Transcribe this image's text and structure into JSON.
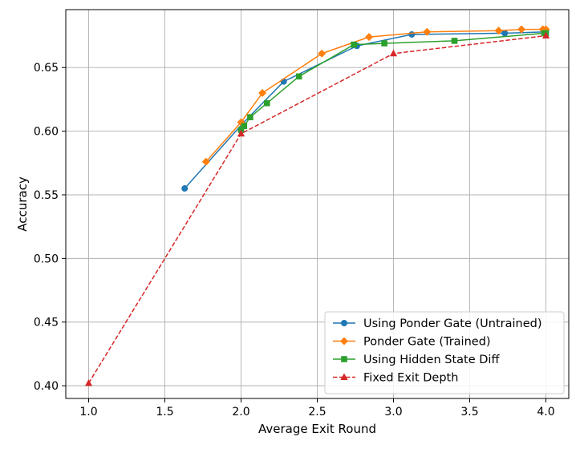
{
  "chart_data": {
    "type": "line",
    "title": "",
    "xlabel": "Average Exit Round",
    "ylabel": "Accuracy",
    "xlim": [
      0.85,
      4.15
    ],
    "ylim": [
      0.39,
      0.6955
    ],
    "xticks": [
      1.0,
      1.5,
      2.0,
      2.5,
      3.0,
      3.5,
      4.0
    ],
    "xtick_labels": [
      "1.0",
      "1.5",
      "2.0",
      "2.5",
      "3.0",
      "3.5",
      "4.0"
    ],
    "yticks": [
      0.4,
      0.45,
      0.5,
      0.55,
      0.6,
      0.65
    ],
    "ytick_labels": [
      "0.40",
      "0.45",
      "0.50",
      "0.55",
      "0.60",
      "0.65"
    ],
    "grid": true,
    "legend_position": "lower-right",
    "series": [
      {
        "name": "Using Ponder Gate (Untrained)",
        "color": "#1f77b4",
        "marker": "circle",
        "linestyle": "solid",
        "x": [
          1.63,
          2.01,
          2.28,
          2.76,
          3.12,
          3.73,
          4.0
        ],
        "y": [
          0.555,
          0.606,
          0.639,
          0.667,
          0.676,
          0.677,
          0.678
        ]
      },
      {
        "name": "Ponder Gate (Trained)",
        "color": "#ff7f0e",
        "marker": "diamond",
        "linestyle": "solid",
        "x": [
          1.77,
          2.0,
          2.14,
          2.53,
          2.84,
          3.22,
          3.69,
          3.84,
          3.98,
          4.0
        ],
        "y": [
          0.576,
          0.607,
          0.63,
          0.661,
          0.674,
          0.678,
          0.679,
          0.68,
          0.68,
          0.68
        ]
      },
      {
        "name": "Using Hidden State Diff",
        "color": "#2ca02c",
        "marker": "square",
        "linestyle": "solid",
        "x": [
          2.0,
          2.02,
          2.06,
          2.17,
          2.38,
          2.74,
          2.94,
          3.4,
          3.99,
          4.0
        ],
        "y": [
          0.601,
          0.604,
          0.611,
          0.622,
          0.643,
          0.668,
          0.669,
          0.671,
          0.677,
          0.677
        ]
      },
      {
        "name": "Fixed Exit Depth",
        "color": "#d62728",
        "marker": "triangle",
        "linestyle": "dashed",
        "x": [
          1.0,
          2.0,
          3.0,
          4.0
        ],
        "y": [
          0.402,
          0.598,
          0.661,
          0.675
        ]
      }
    ]
  }
}
